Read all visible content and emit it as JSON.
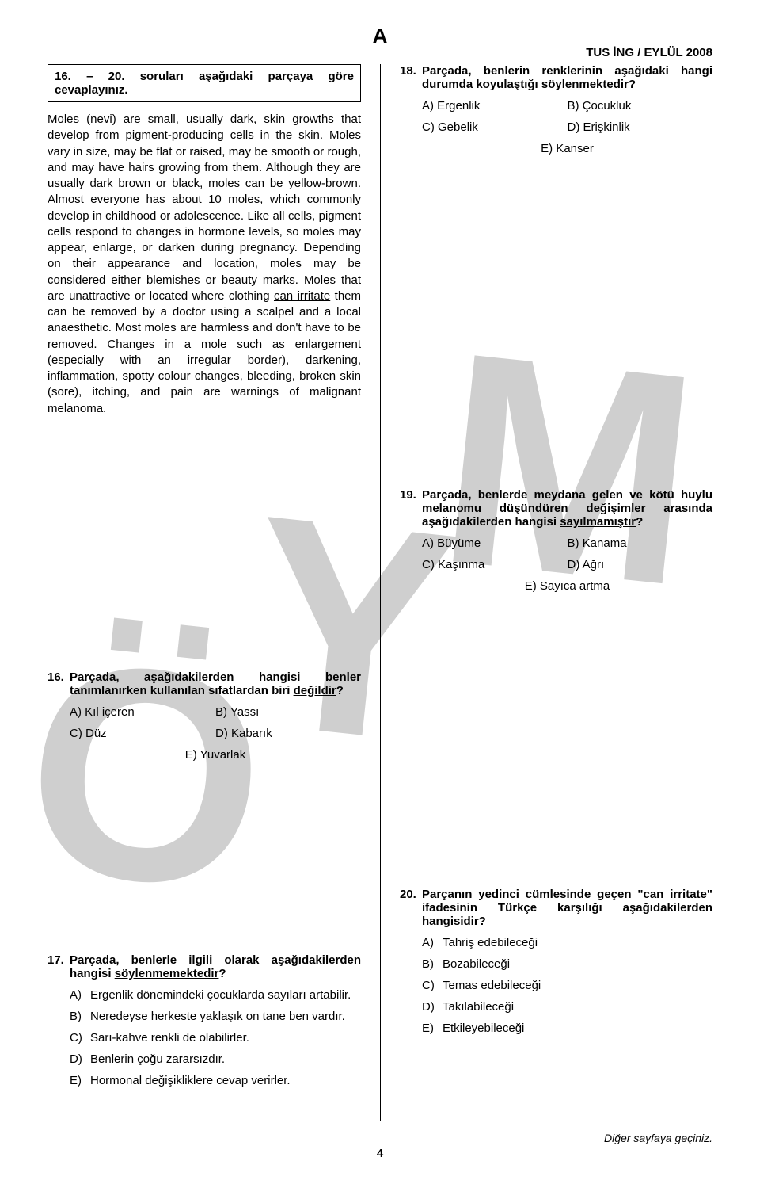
{
  "header_letter": "A",
  "header_right": "TUS İNG / EYLÜL 2008",
  "instruction": "16. – 20. soruları aşağıdaki parçaya göre cevaplayınız.",
  "passage_a": "Moles (nevi) are small, usually dark, skin growths that develop from pigment-producing cells in the skin. Moles vary in size, may be flat or raised, may be smooth or rough, and may have hairs growing from them. Although they are usually dark brown or black, moles can be yellow-brown. Almost everyone has about 10 moles, which commonly develop in childhood or adolescence. Like all cells, pigment cells respond to changes in hormone levels, so moles may appear, enlarge, or darken during pregnancy. Depending on their appearance and location, moles may be considered either blemishes or beauty marks. Moles that are unattractive or located where clothing ",
  "passage_u": "can irritate",
  "passage_b": " them can be removed by a doctor using a scalpel and a local anaesthetic. Most moles are harmless and don't have to be removed. Changes in a mole such as enlargement (especially with an irregular border), darkening, inflammation, spotty colour changes, bleeding, broken skin (sore), itching, and pain are warnings of malignant melanoma.",
  "q16": {
    "num": "16.",
    "stem": "Parçada, aşağıdakilerden hangisi benler tanımlanırken kullanılan sıfatlardan biri değildir?",
    "a": "A) Kıl içeren",
    "b": "B) Yassı",
    "c": "C) Düz",
    "d": "D) Kabarık",
    "e": "E) Yuvarlak"
  },
  "q17": {
    "num": "17.",
    "stem": "Parçada, benlerle ilgili olarak aşağıdakilerden hangisi söylenmemektedir?",
    "a": "Ergenlik dönemindeki çocuklarda sayıları artabilir.",
    "b": "Neredeyse herkeste yaklaşık on tane ben vardır.",
    "c": "Sarı-kahve renkli de olabilirler.",
    "d": "Benlerin çoğu zararsızdır.",
    "e": "Hormonal değişikliklere cevap verirler.",
    "la": "A)",
    "lb": "B)",
    "lc": "C)",
    "ld": "D)",
    "le": "E)"
  },
  "q18": {
    "num": "18.",
    "stem": "Parçada, benlerin renklerinin aşağıdaki hangi durumda koyulaştığı söylenmektedir?",
    "a": "A) Ergenlik",
    "b": "B) Çocukluk",
    "c": "C) Gebelik",
    "d": "D) Erişkinlik",
    "e": "E) Kanser"
  },
  "q19": {
    "num": "19.",
    "stem": "Parçada, benlerde meydana gelen ve kötü huylu melanomu düşündüren değişimler arasında aşağıdakilerden hangisi sayılmamıştır?",
    "a": "A) Büyüme",
    "b": "B) Kanama",
    "c": "C) Kaşınma",
    "d": "D) Ağrı",
    "e": "E) Sayıca artma"
  },
  "q20": {
    "num": "20.",
    "stem": "Parçanın yedinci cümlesinde geçen \"can irritate\" ifadesinin Türkçe karşılığı aşağıdakilerden hangisidir?",
    "a": "Tahriş edebileceği",
    "b": "Bozabileceği",
    "c": "Temas edebileceği",
    "d": "Takılabileceği",
    "e": "Etkileyebileceği",
    "la": "A)",
    "lb": "B)",
    "lc": "C)",
    "ld": "D)",
    "le": "E)"
  },
  "footer_note": "Diğer sayfaya geçiniz.",
  "footer_page": "4",
  "watermark": {
    "text1": "Ö",
    "text2": "Y",
    "text3": "M",
    "fill": "#cfcfcf",
    "fontsize": 380
  }
}
